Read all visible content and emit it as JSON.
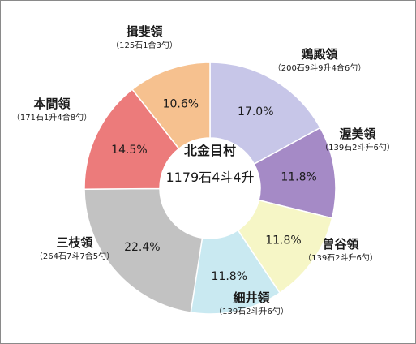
{
  "chart_data": {
    "type": "pie",
    "variant": "donut",
    "center_title": "北金目村",
    "center_value": "1179石4斗4升",
    "start": "12 o'clock, clockwise",
    "slices": [
      {
        "name": "鶏殿領",
        "detail": "（200石9斗9升4合6勺）",
        "value": 17.0,
        "label": "17.0%",
        "color": "#c7c6e8"
      },
      {
        "name": "渥美領",
        "detail": "（139石2斗升6勺）",
        "value": 11.8,
        "label": "11.8%",
        "color": "#a58ac6"
      },
      {
        "name": "曽谷領",
        "detail": "（139石2斗升6勺）",
        "value": 11.8,
        "label": "11.8%",
        "color": "#f6f6c6"
      },
      {
        "name": "細井領",
        "detail": "（139石2斗升6勺）",
        "value": 11.8,
        "label": "11.8%",
        "color": "#c9e9f1"
      },
      {
        "name": "三枝領",
        "detail": "（264石7斗7合5勺）",
        "value": 22.4,
        "label": "22.4%",
        "color": "#c2c2c2"
      },
      {
        "name": "本間領",
        "detail": "（171石1升4合8勺）",
        "value": 14.5,
        "label": "14.5%",
        "color": "#ec7b7b"
      },
      {
        "name": "揖斐領",
        "detail": "（125石1合3勺）",
        "value": 10.6,
        "label": "10.6%",
        "color": "#f6c18f"
      }
    ]
  }
}
